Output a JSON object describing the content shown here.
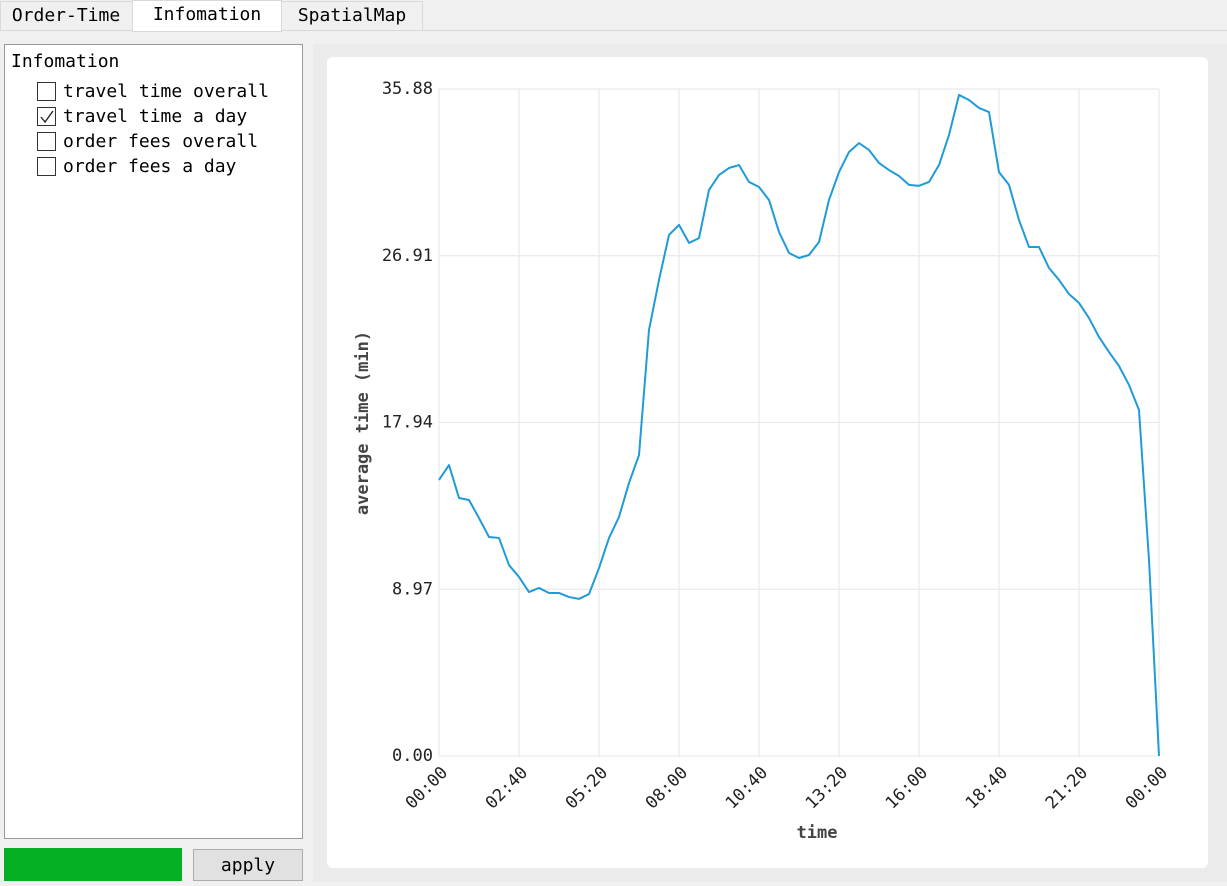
{
  "tabs": [
    "Order-Time",
    "Infomation",
    "SpatialMap"
  ],
  "panel": {
    "title": "Infomation",
    "options": [
      {
        "label": "travel time overall",
        "checked": false
      },
      {
        "label": "travel time a day",
        "checked": true
      },
      {
        "label": "order fees overall",
        "checked": false
      },
      {
        "label": "order fees a day",
        "checked": false
      }
    ]
  },
  "apply_button": "apply",
  "chart_data": {
    "type": "line",
    "xlabel": "time",
    "ylabel": "average time (min)",
    "color": "#1f9bd7",
    "grid": true,
    "x": [
      0,
      20,
      40,
      60,
      80,
      100,
      120,
      140,
      160,
      180,
      200,
      220,
      240,
      260,
      280,
      300,
      320,
      340,
      360,
      380,
      400,
      420,
      440,
      460,
      480,
      500,
      520,
      540,
      560,
      580,
      600,
      620,
      640,
      660,
      680,
      700,
      720,
      740,
      760,
      780,
      800,
      820,
      840,
      860,
      880,
      900,
      920,
      940,
      960,
      980,
      1000,
      1020,
      1040,
      1060,
      1080,
      1100,
      1120,
      1140,
      1160,
      1180,
      1200,
      1220,
      1240,
      1260,
      1280,
      1300,
      1320,
      1340,
      1360,
      1380,
      1400,
      1420,
      1440
    ],
    "values": [
      14.85,
      15.65,
      13.88,
      13.77,
      12.8,
      11.78,
      11.73,
      10.27,
      9.63,
      8.82,
      9.04,
      8.77,
      8.77,
      8.55,
      8.45,
      8.71,
      10.11,
      11.73,
      12.86,
      14.69,
      16.19,
      22.92,
      25.61,
      28.03,
      28.57,
      27.6,
      27.86,
      30.45,
      31.25,
      31.63,
      31.79,
      30.88,
      30.61,
      29.91,
      28.19,
      27.06,
      26.79,
      26.95,
      27.65,
      29.91,
      31.41,
      32.49,
      32.97,
      32.6,
      31.9,
      31.52,
      31.2,
      30.72,
      30.67,
      30.88,
      31.79,
      33.41,
      35.56,
      35.29,
      34.86,
      34.64,
      31.41,
      30.72,
      28.83,
      27.38,
      27.38,
      26.25,
      25.61,
      24.85,
      24.37,
      23.56,
      22.54,
      21.73,
      20.98,
      19.96,
      18.61,
      10.54,
      0
    ],
    "xlim": [
      0,
      1440
    ],
    "xticks": [
      {
        "value": 0,
        "label": "00:00"
      },
      {
        "value": 160,
        "label": "02:40"
      },
      {
        "value": 320,
        "label": "05:20"
      },
      {
        "value": 480,
        "label": "08:00"
      },
      {
        "value": 640,
        "label": "10:40"
      },
      {
        "value": 800,
        "label": "13:20"
      },
      {
        "value": 960,
        "label": "16:00"
      },
      {
        "value": 1120,
        "label": "18:40"
      },
      {
        "value": 1280,
        "label": "21:20"
      },
      {
        "value": 1440,
        "label": "00:00"
      }
    ],
    "ylim": [
      0,
      35.88
    ],
    "yticks": [
      {
        "value": 0,
        "label": "0.00"
      },
      8.97,
      17.94,
      26.91,
      35.88
    ]
  }
}
